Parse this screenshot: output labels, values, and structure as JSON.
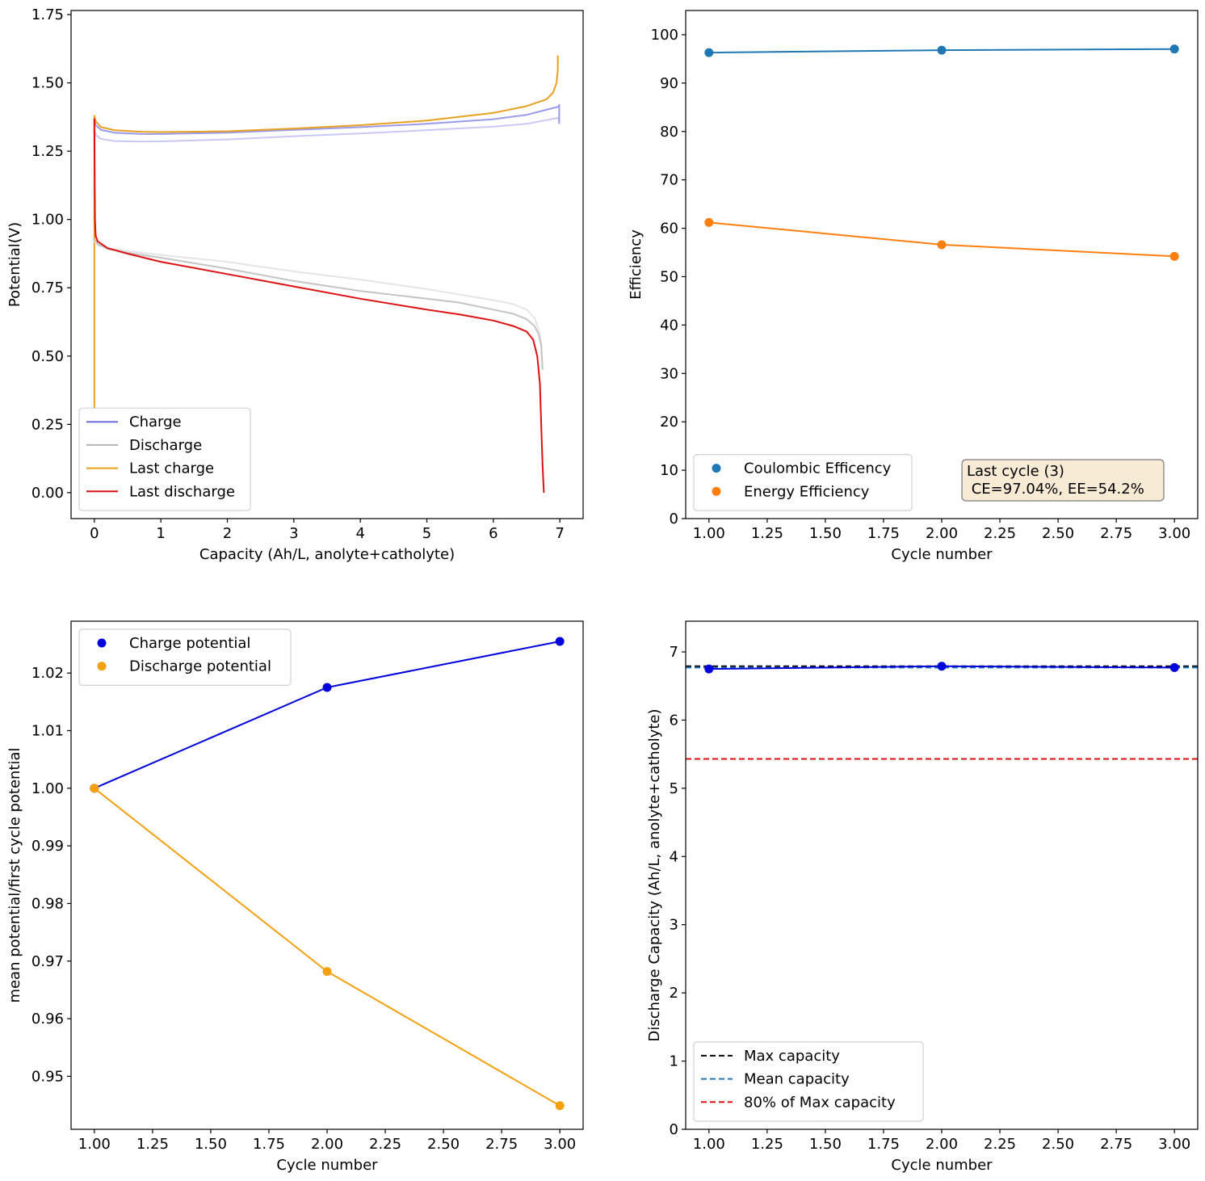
{
  "chart_data": [
    {
      "id": "voltage-profile",
      "type": "line",
      "title": "",
      "xlabel": "Capacity (Ah/L, anolyte+catholyte)",
      "ylabel": "Potential(V)",
      "xlim": [
        -0.35,
        7.35
      ],
      "ylim": [
        -0.095,
        1.765
      ],
      "xticks": [
        0,
        1,
        2,
        3,
        4,
        5,
        6,
        7
      ],
      "xtick_labels": [
        "0",
        "1",
        "2",
        "3",
        "4",
        "5",
        "6",
        "7"
      ],
      "yticks": [
        0.0,
        0.25,
        0.5,
        0.75,
        1.0,
        1.25,
        1.5,
        1.75
      ],
      "ytick_labels": [
        "0.00",
        "0.25",
        "0.50",
        "0.75",
        "1.00",
        "1.25",
        "1.50",
        "1.75"
      ],
      "grid": false,
      "legend": {
        "position": "lower-left",
        "entries": [
          {
            "label": "Charge",
            "color": "#6f6fdc",
            "style": "line"
          },
          {
            "label": "Discharge",
            "color": "#b4b4b4",
            "style": "line"
          },
          {
            "label": "Last charge",
            "color": "#e8a020",
            "style": "line"
          },
          {
            "label": "Last discharge",
            "color": "#dd1111",
            "style": "line"
          }
        ]
      },
      "series": [
        {
          "name": "Charge (cycle 1)",
          "color": "#c8c8f4",
          "x": [
            0,
            0.02,
            0.1,
            0.3,
            0.7,
            1.0,
            2.0,
            3.0,
            4.0,
            5.0,
            6.0,
            6.5,
            6.98,
            6.99
          ],
          "y": [
            1.33,
            1.31,
            1.295,
            1.287,
            1.285,
            1.286,
            1.293,
            1.305,
            1.315,
            1.327,
            1.34,
            1.35,
            1.372,
            1.36
          ]
        },
        {
          "name": "Charge (cycle 2)",
          "color": "#9a9aea",
          "x": [
            0,
            0.02,
            0.1,
            0.3,
            0.7,
            1.0,
            2.0,
            3.0,
            4.0,
            5.0,
            6.0,
            6.5,
            6.98,
            6.99,
            6.99
          ],
          "y": [
            1.37,
            1.345,
            1.328,
            1.318,
            1.313,
            1.313,
            1.318,
            1.328,
            1.338,
            1.35,
            1.367,
            1.383,
            1.413,
            1.42,
            1.35
          ]
        },
        {
          "name": "Last charge",
          "color": "#e8a020",
          "x": [
            0,
            0.0,
            0.02,
            0.1,
            0.3,
            0.7,
            1.0,
            2.0,
            3.0,
            4.0,
            5.0,
            6.0,
            6.5,
            6.8,
            6.9,
            6.95,
            6.97,
            6.97
          ],
          "y": [
            0.31,
            1.38,
            1.36,
            1.338,
            1.327,
            1.321,
            1.32,
            1.323,
            1.333,
            1.345,
            1.362,
            1.39,
            1.415,
            1.44,
            1.465,
            1.5,
            1.55,
            1.6
          ]
        },
        {
          "name": "Discharge (cycle 1)",
          "color": "#e4e4e4",
          "x": [
            0,
            0.05,
            0.2,
            0.5,
            1.0,
            2.0,
            3.0,
            4.0,
            5.0,
            5.5,
            6.0,
            6.3,
            6.5,
            6.62,
            6.68,
            6.72,
            6.74
          ],
          "y": [
            0.92,
            0.905,
            0.895,
            0.885,
            0.87,
            0.845,
            0.81,
            0.78,
            0.745,
            0.725,
            0.705,
            0.69,
            0.67,
            0.64,
            0.6,
            0.55,
            0.45
          ]
        },
        {
          "name": "Discharge (cycle 2)",
          "color": "#c4c4c4",
          "x": [
            0,
            0.05,
            0.2,
            0.5,
            1.0,
            2.0,
            3.0,
            4.0,
            5.0,
            5.5,
            6.0,
            6.3,
            6.5,
            6.62,
            6.68,
            6.72,
            6.74
          ],
          "y": [
            0.93,
            0.91,
            0.892,
            0.878,
            0.86,
            0.82,
            0.775,
            0.738,
            0.71,
            0.695,
            0.67,
            0.655,
            0.635,
            0.61,
            0.58,
            0.54,
            0.45
          ]
        },
        {
          "name": "Last discharge",
          "color": "#dd1111",
          "x": [
            0,
            0.01,
            0.02,
            0.05,
            0.2,
            0.5,
            1.0,
            2.0,
            3.0,
            4.0,
            5.0,
            5.5,
            6.0,
            6.3,
            6.5,
            6.6,
            6.66,
            6.7,
            6.72,
            6.74,
            6.76
          ],
          "y": [
            1.37,
            1.0,
            0.94,
            0.92,
            0.895,
            0.875,
            0.845,
            0.8,
            0.755,
            0.71,
            0.67,
            0.652,
            0.63,
            0.61,
            0.59,
            0.56,
            0.5,
            0.4,
            0.25,
            0.1,
            0.0
          ]
        }
      ]
    },
    {
      "id": "efficiency",
      "type": "line",
      "title": "",
      "xlabel": "Cycle number",
      "ylabel": "Efficiency",
      "xlim": [
        0.9,
        3.1
      ],
      "ylim": [
        0,
        105
      ],
      "xticks": [
        1.0,
        1.25,
        1.5,
        1.75,
        2.0,
        2.25,
        2.5,
        2.75,
        3.0
      ],
      "xtick_labels": [
        "1.00",
        "1.25",
        "1.50",
        "1.75",
        "2.00",
        "2.25",
        "2.50",
        "2.75",
        "3.00"
      ],
      "yticks": [
        0,
        10,
        20,
        30,
        40,
        50,
        60,
        70,
        80,
        90,
        100
      ],
      "ytick_labels": [
        "0",
        "10",
        "20",
        "30",
        "40",
        "50",
        "60",
        "70",
        "80",
        "90",
        "100"
      ],
      "grid": false,
      "legend": {
        "position": "lower-left",
        "entries": [
          {
            "label": "Coulombic Efficency",
            "color": "#1f77b4",
            "style": "marker"
          },
          {
            "label": "Energy Efficiency",
            "color": "#ff7f0e",
            "style": "marker"
          }
        ]
      },
      "annotation": {
        "lines": [
          "Last cycle (3)",
          " CE=97.04%, EE=54.2%"
        ],
        "position": "lower-right",
        "facecolor": "#f8ebd6",
        "edgecolor": "#7a7a7a"
      },
      "series": [
        {
          "name": "Coulombic Efficency",
          "color": "#1f77b4",
          "x": [
            1,
            2,
            3
          ],
          "y": [
            96.3,
            96.8,
            97.04
          ]
        },
        {
          "name": "Energy Efficiency",
          "color": "#ff7f0e",
          "x": [
            1,
            2,
            3
          ],
          "y": [
            61.2,
            56.6,
            54.2
          ]
        }
      ]
    },
    {
      "id": "mean-potential-ratio",
      "type": "line",
      "title": "",
      "xlabel": "Cycle number",
      "ylabel": "mean potential/first cycle potential",
      "xlim": [
        0.9,
        3.1
      ],
      "ylim": [
        0.9408,
        1.029
      ],
      "xticks": [
        1.0,
        1.25,
        1.5,
        1.75,
        2.0,
        2.25,
        2.5,
        2.75,
        3.0
      ],
      "xtick_labels": [
        "1.00",
        "1.25",
        "1.50",
        "1.75",
        "2.00",
        "2.25",
        "2.50",
        "2.75",
        "3.00"
      ],
      "yticks": [
        0.95,
        0.96,
        0.97,
        0.98,
        0.99,
        1.0,
        1.01,
        1.02
      ],
      "ytick_labels": [
        "0.95",
        "0.96",
        "0.97",
        "0.98",
        "0.99",
        "1.00",
        "1.01",
        "1.02"
      ],
      "grid": false,
      "legend": {
        "position": "upper-left",
        "entries": [
          {
            "label": "Charge potential",
            "color": "#0000dd",
            "style": "marker"
          },
          {
            "label": "Discharge potential",
            "color": "#f5a00f",
            "style": "marker"
          }
        ]
      },
      "series": [
        {
          "name": "Charge potential",
          "color": "#0000dd",
          "x": [
            1,
            2,
            3
          ],
          "y": [
            1.0,
            1.0175,
            1.0255
          ]
        },
        {
          "name": "Discharge potential",
          "color": "#f5a00f",
          "x": [
            1,
            2,
            3
          ],
          "y": [
            1.0,
            0.9682,
            0.9449
          ]
        }
      ]
    },
    {
      "id": "discharge-capacity",
      "type": "line",
      "title": "",
      "xlabel": "Cycle number",
      "ylabel": "Discharge Capacity (Ah/L, anolyte+catholyte)",
      "xlim": [
        0.9,
        3.1
      ],
      "ylim": [
        0,
        7.45
      ],
      "xticks": [
        1.0,
        1.25,
        1.5,
        1.75,
        2.0,
        2.25,
        2.5,
        2.75,
        3.0
      ],
      "xtick_labels": [
        "1.00",
        "1.25",
        "1.50",
        "1.75",
        "2.00",
        "2.25",
        "2.50",
        "2.75",
        "3.00"
      ],
      "yticks": [
        0,
        1,
        2,
        3,
        4,
        5,
        6,
        7
      ],
      "ytick_labels": [
        "0",
        "1",
        "2",
        "3",
        "4",
        "5",
        "6",
        "7"
      ],
      "grid": false,
      "legend": {
        "position": "lower-left",
        "entries": [
          {
            "label": "Max capacity",
            "color": "#000000",
            "style": "dashed"
          },
          {
            "label": "Mean capacity",
            "color": "#1f77b4",
            "style": "dashed"
          },
          {
            "label": "80% of Max capacity",
            "color": "#dd1111",
            "style": "dashed"
          }
        ]
      },
      "hlines": [
        {
          "name": "Max capacity",
          "value": 6.79,
          "color": "#000000"
        },
        {
          "name": "Mean capacity",
          "value": 6.77,
          "color": "#1f77b4"
        },
        {
          "name": "80% of Max capacity",
          "value": 5.43,
          "color": "#dd1111"
        }
      ],
      "series": [
        {
          "name": "Discharge capacity",
          "color": "#0000dd",
          "x": [
            1,
            2,
            3
          ],
          "y": [
            6.75,
            6.79,
            6.77
          ]
        }
      ]
    }
  ]
}
